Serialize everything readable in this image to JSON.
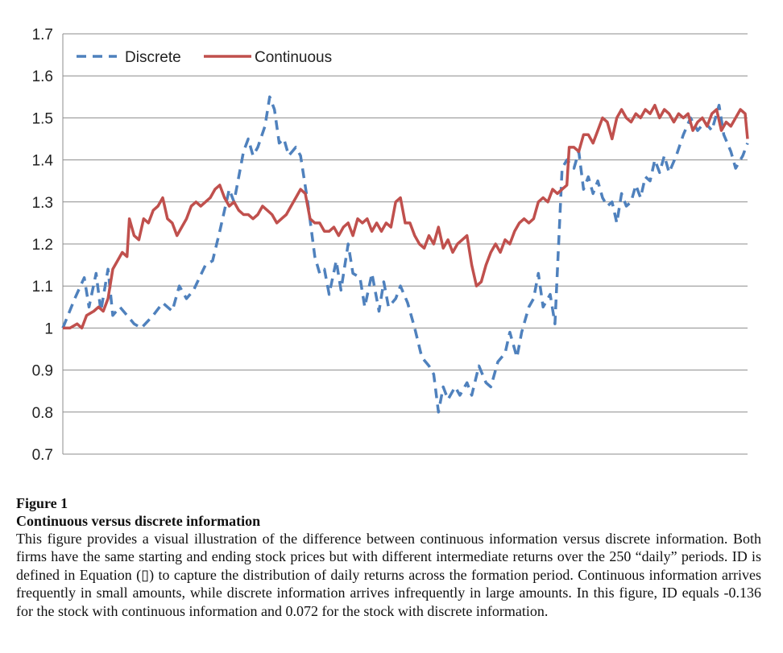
{
  "chart_data": {
    "type": "line",
    "title": "",
    "xlabel": "",
    "ylabel": "",
    "ylim": [
      0.7,
      1.7
    ],
    "yticks": [
      "1.7",
      "1.6",
      "1.5",
      "1.4",
      "1.3",
      "1.2",
      "1.1",
      "1",
      "0.9",
      "0.8",
      "0.7"
    ],
    "x_points": 250,
    "grid": true,
    "legend_position": "top-left",
    "series": [
      {
        "name": "Discrete",
        "color": "#4F81BD",
        "style": "dashed",
        "keypoints": [
          [
            0,
            1.0
          ],
          [
            5,
            1.07
          ],
          [
            9,
            1.12
          ],
          [
            11,
            1.05
          ],
          [
            14,
            1.13
          ],
          [
            16,
            1.04
          ],
          [
            19,
            1.14
          ],
          [
            21,
            1.03
          ],
          [
            24,
            1.05
          ],
          [
            27,
            1.03
          ],
          [
            30,
            1.01
          ],
          [
            33,
            1.0
          ],
          [
            38,
            1.03
          ],
          [
            42,
            1.06
          ],
          [
            46,
            1.04
          ],
          [
            49,
            1.1
          ],
          [
            52,
            1.07
          ],
          [
            55,
            1.09
          ],
          [
            60,
            1.15
          ],
          [
            63,
            1.16
          ],
          [
            66,
            1.23
          ],
          [
            70,
            1.33
          ],
          [
            72,
            1.3
          ],
          [
            76,
            1.42
          ],
          [
            78,
            1.45
          ],
          [
            80,
            1.41
          ],
          [
            82,
            1.43
          ],
          [
            85,
            1.48
          ],
          [
            87,
            1.55
          ],
          [
            89,
            1.52
          ],
          [
            91,
            1.44
          ],
          [
            93,
            1.45
          ],
          [
            95,
            1.41
          ],
          [
            98,
            1.43
          ],
          [
            100,
            1.41
          ],
          [
            103,
            1.3
          ],
          [
            106,
            1.17
          ],
          [
            108,
            1.13
          ],
          [
            110,
            1.14
          ],
          [
            112,
            1.08
          ],
          [
            115,
            1.16
          ],
          [
            117,
            1.09
          ],
          [
            120,
            1.2
          ],
          [
            122,
            1.13
          ],
          [
            125,
            1.12
          ],
          [
            127,
            1.05
          ],
          [
            130,
            1.13
          ],
          [
            133,
            1.04
          ],
          [
            135,
            1.11
          ],
          [
            137,
            1.05
          ],
          [
            140,
            1.07
          ],
          [
            142,
            1.1
          ],
          [
            145,
            1.06
          ],
          [
            148,
            1.0
          ],
          [
            151,
            0.93
          ],
          [
            154,
            0.91
          ],
          [
            156,
            0.89
          ],
          [
            158,
            0.8
          ],
          [
            160,
            0.86
          ],
          [
            162,
            0.83
          ],
          [
            165,
            0.86
          ],
          [
            167,
            0.84
          ],
          [
            170,
            0.87
          ],
          [
            172,
            0.84
          ],
          [
            175,
            0.91
          ],
          [
            178,
            0.87
          ],
          [
            180,
            0.86
          ],
          [
            183,
            0.92
          ],
          [
            186,
            0.94
          ],
          [
            188,
            0.99
          ],
          [
            191,
            0.93
          ],
          [
            193,
            0.99
          ],
          [
            196,
            1.05
          ],
          [
            198,
            1.07
          ],
          [
            200,
            1.13
          ],
          [
            202,
            1.05
          ],
          [
            205,
            1.08
          ],
          [
            207,
            1.01
          ],
          [
            210,
            1.38
          ],
          [
            212,
            1.4
          ],
          [
            215,
            1.38
          ],
          [
            217,
            1.42
          ],
          [
            219,
            1.33
          ],
          [
            221,
            1.36
          ],
          [
            223,
            1.32
          ],
          [
            225,
            1.35
          ],
          [
            227,
            1.31
          ],
          [
            229,
            1.29
          ],
          [
            231,
            1.3
          ],
          [
            233,
            1.25
          ],
          [
            235,
            1.32
          ],
          [
            237,
            1.29
          ],
          [
            239,
            1.3
          ],
          [
            241,
            1.34
          ],
          [
            243,
            1.31
          ],
          [
            245,
            1.36
          ],
          [
            247,
            1.35
          ],
          [
            249,
            1.4
          ],
          [
            251,
            1.37
          ],
          [
            253,
            1.41
          ],
          [
            255,
            1.37
          ],
          [
            258,
            1.41
          ],
          [
            261,
            1.46
          ],
          [
            264,
            1.5
          ],
          [
            267,
            1.47
          ],
          [
            270,
            1.49
          ],
          [
            273,
            1.47
          ],
          [
            276,
            1.53
          ],
          [
            278,
            1.46
          ],
          [
            281,
            1.42
          ],
          [
            283,
            1.38
          ],
          [
            286,
            1.41
          ],
          [
            288,
            1.44
          ]
        ]
      },
      {
        "name": "Continuous",
        "color": "#C0504D",
        "style": "solid",
        "keypoints": [
          [
            0,
            1.0
          ],
          [
            3,
            1.0
          ],
          [
            6,
            1.01
          ],
          [
            8,
            1.0
          ],
          [
            10,
            1.03
          ],
          [
            13,
            1.04
          ],
          [
            15,
            1.05
          ],
          [
            17,
            1.04
          ],
          [
            19,
            1.07
          ],
          [
            21,
            1.14
          ],
          [
            23,
            1.16
          ],
          [
            25,
            1.18
          ],
          [
            27,
            1.17
          ],
          [
            28,
            1.26
          ],
          [
            30,
            1.22
          ],
          [
            32,
            1.21
          ],
          [
            34,
            1.26
          ],
          [
            36,
            1.25
          ],
          [
            38,
            1.28
          ],
          [
            40,
            1.29
          ],
          [
            42,
            1.31
          ],
          [
            44,
            1.26
          ],
          [
            46,
            1.25
          ],
          [
            48,
            1.22
          ],
          [
            50,
            1.24
          ],
          [
            52,
            1.26
          ],
          [
            54,
            1.29
          ],
          [
            56,
            1.3
          ],
          [
            58,
            1.29
          ],
          [
            60,
            1.3
          ],
          [
            62,
            1.31
          ],
          [
            64,
            1.33
          ],
          [
            66,
            1.34
          ],
          [
            68,
            1.31
          ],
          [
            70,
            1.29
          ],
          [
            72,
            1.3
          ],
          [
            74,
            1.28
          ],
          [
            76,
            1.27
          ],
          [
            78,
            1.27
          ],
          [
            80,
            1.26
          ],
          [
            82,
            1.27
          ],
          [
            84,
            1.29
          ],
          [
            86,
            1.28
          ],
          [
            88,
            1.27
          ],
          [
            90,
            1.25
          ],
          [
            92,
            1.26
          ],
          [
            94,
            1.27
          ],
          [
            96,
            1.29
          ],
          [
            98,
            1.31
          ],
          [
            100,
            1.33
          ],
          [
            102,
            1.32
          ],
          [
            104,
            1.26
          ],
          [
            106,
            1.25
          ],
          [
            108,
            1.25
          ],
          [
            110,
            1.23
          ],
          [
            112,
            1.23
          ],
          [
            114,
            1.24
          ],
          [
            116,
            1.22
          ],
          [
            118,
            1.24
          ],
          [
            120,
            1.25
          ],
          [
            122,
            1.22
          ],
          [
            124,
            1.26
          ],
          [
            126,
            1.25
          ],
          [
            128,
            1.26
          ],
          [
            130,
            1.23
          ],
          [
            132,
            1.25
          ],
          [
            134,
            1.23
          ],
          [
            136,
            1.25
          ],
          [
            138,
            1.24
          ],
          [
            140,
            1.3
          ],
          [
            142,
            1.31
          ],
          [
            144,
            1.25
          ],
          [
            146,
            1.25
          ],
          [
            148,
            1.22
          ],
          [
            150,
            1.2
          ],
          [
            152,
            1.19
          ],
          [
            154,
            1.22
          ],
          [
            156,
            1.2
          ],
          [
            158,
            1.24
          ],
          [
            160,
            1.19
          ],
          [
            162,
            1.21
          ],
          [
            164,
            1.18
          ],
          [
            166,
            1.2
          ],
          [
            168,
            1.21
          ],
          [
            170,
            1.22
          ],
          [
            172,
            1.15
          ],
          [
            174,
            1.1
          ],
          [
            176,
            1.11
          ],
          [
            178,
            1.15
          ],
          [
            180,
            1.18
          ],
          [
            182,
            1.2
          ],
          [
            184,
            1.18
          ],
          [
            186,
            1.21
          ],
          [
            188,
            1.2
          ],
          [
            190,
            1.23
          ],
          [
            192,
            1.25
          ],
          [
            194,
            1.26
          ],
          [
            196,
            1.25
          ],
          [
            198,
            1.26
          ],
          [
            200,
            1.3
          ],
          [
            202,
            1.31
          ],
          [
            204,
            1.3
          ],
          [
            206,
            1.33
          ],
          [
            208,
            1.32
          ],
          [
            210,
            1.33
          ],
          [
            212,
            1.34
          ],
          [
            213,
            1.43
          ],
          [
            215,
            1.43
          ],
          [
            217,
            1.42
          ],
          [
            219,
            1.46
          ],
          [
            221,
            1.46
          ],
          [
            223,
            1.44
          ],
          [
            225,
            1.47
          ],
          [
            227,
            1.5
          ],
          [
            229,
            1.49
          ],
          [
            231,
            1.45
          ],
          [
            233,
            1.5
          ],
          [
            235,
            1.52
          ],
          [
            237,
            1.5
          ],
          [
            239,
            1.49
          ],
          [
            241,
            1.51
          ],
          [
            243,
            1.5
          ],
          [
            245,
            1.52
          ],
          [
            247,
            1.51
          ],
          [
            249,
            1.53
          ],
          [
            251,
            1.5
          ],
          [
            253,
            1.52
          ],
          [
            255,
            1.51
          ],
          [
            257,
            1.49
          ],
          [
            259,
            1.51
          ],
          [
            261,
            1.5
          ],
          [
            263,
            1.51
          ],
          [
            265,
            1.47
          ],
          [
            267,
            1.49
          ],
          [
            269,
            1.5
          ],
          [
            271,
            1.48
          ],
          [
            273,
            1.51
          ],
          [
            275,
            1.52
          ],
          [
            277,
            1.47
          ],
          [
            279,
            1.49
          ],
          [
            281,
            1.48
          ],
          [
            283,
            1.5
          ],
          [
            285,
            1.52
          ],
          [
            287,
            1.51
          ],
          [
            288,
            1.45
          ]
        ]
      }
    ]
  },
  "caption": {
    "figure_number": "Figure 1",
    "title": "Continuous versus discrete information",
    "body": "This figure provides a visual illustration of the difference between continuous information versus discrete information. Both firms have the same starting and ending stock prices but with different intermediate returns over the 250 “daily” periods. ID is defined in Equation (▯) to capture the distribution of daily returns across the formation period. Continuous information arrives frequently in small amounts, while discrete information arrives infrequently in large amounts. In this figure, ID equals -0.136 for the stock with continuous information and 0.072 for the stock with discrete information."
  }
}
